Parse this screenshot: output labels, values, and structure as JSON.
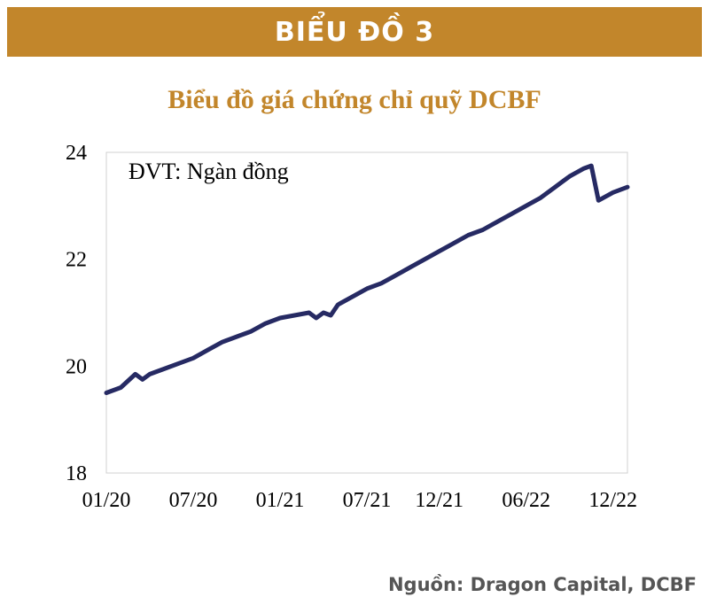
{
  "banner": {
    "title": "BIỂU ĐỒ 3"
  },
  "source": "Nguồn: Dragon Capital, DCBF",
  "colors": {
    "banner": "#c2862b",
    "title": "#c2862b",
    "line": "#262a63"
  },
  "chart_data": {
    "type": "line",
    "title": "Biểu đồ giá chứng chỉ quỹ DCBF",
    "unit_label": "ĐVT: Ngàn đồng",
    "xlabel": "",
    "ylabel": "",
    "ylim": [
      18,
      24
    ],
    "yticks": [
      "18",
      "20",
      "22",
      "24"
    ],
    "xticks": [
      "01/20",
      "07/20",
      "01/21",
      "07/21",
      "12/21",
      "06/22",
      "12/22"
    ],
    "grid": false,
    "series": [
      {
        "x": [
          "01/20",
          "02/20",
          "03/20",
          "03/20",
          "04/20",
          "05/20",
          "06/20",
          "07/20",
          "08/20",
          "09/20",
          "10/20",
          "11/20",
          "12/20",
          "01/21",
          "02/21",
          "03/21",
          "03/21",
          "04/21",
          "04/21",
          "05/21",
          "06/21",
          "07/21",
          "08/21",
          "09/21",
          "10/21",
          "11/21",
          "12/21",
          "01/22",
          "02/22",
          "03/22",
          "04/22",
          "05/22",
          "06/22",
          "07/22",
          "08/22",
          "09/22",
          "10/22",
          "10/22",
          "11/22",
          "12/22",
          "01/23"
        ],
        "values": [
          19.5,
          19.6,
          19.85,
          19.75,
          19.85,
          19.95,
          20.05,
          20.15,
          20.3,
          20.45,
          20.55,
          20.65,
          20.8,
          20.9,
          20.95,
          21.0,
          20.9,
          21.0,
          20.95,
          21.15,
          21.3,
          21.45,
          21.55,
          21.7,
          21.85,
          22.0,
          22.15,
          22.3,
          22.45,
          22.55,
          22.7,
          22.85,
          23.0,
          23.15,
          23.35,
          23.55,
          23.7,
          23.75,
          23.1,
          23.25,
          23.35
        ]
      }
    ]
  }
}
